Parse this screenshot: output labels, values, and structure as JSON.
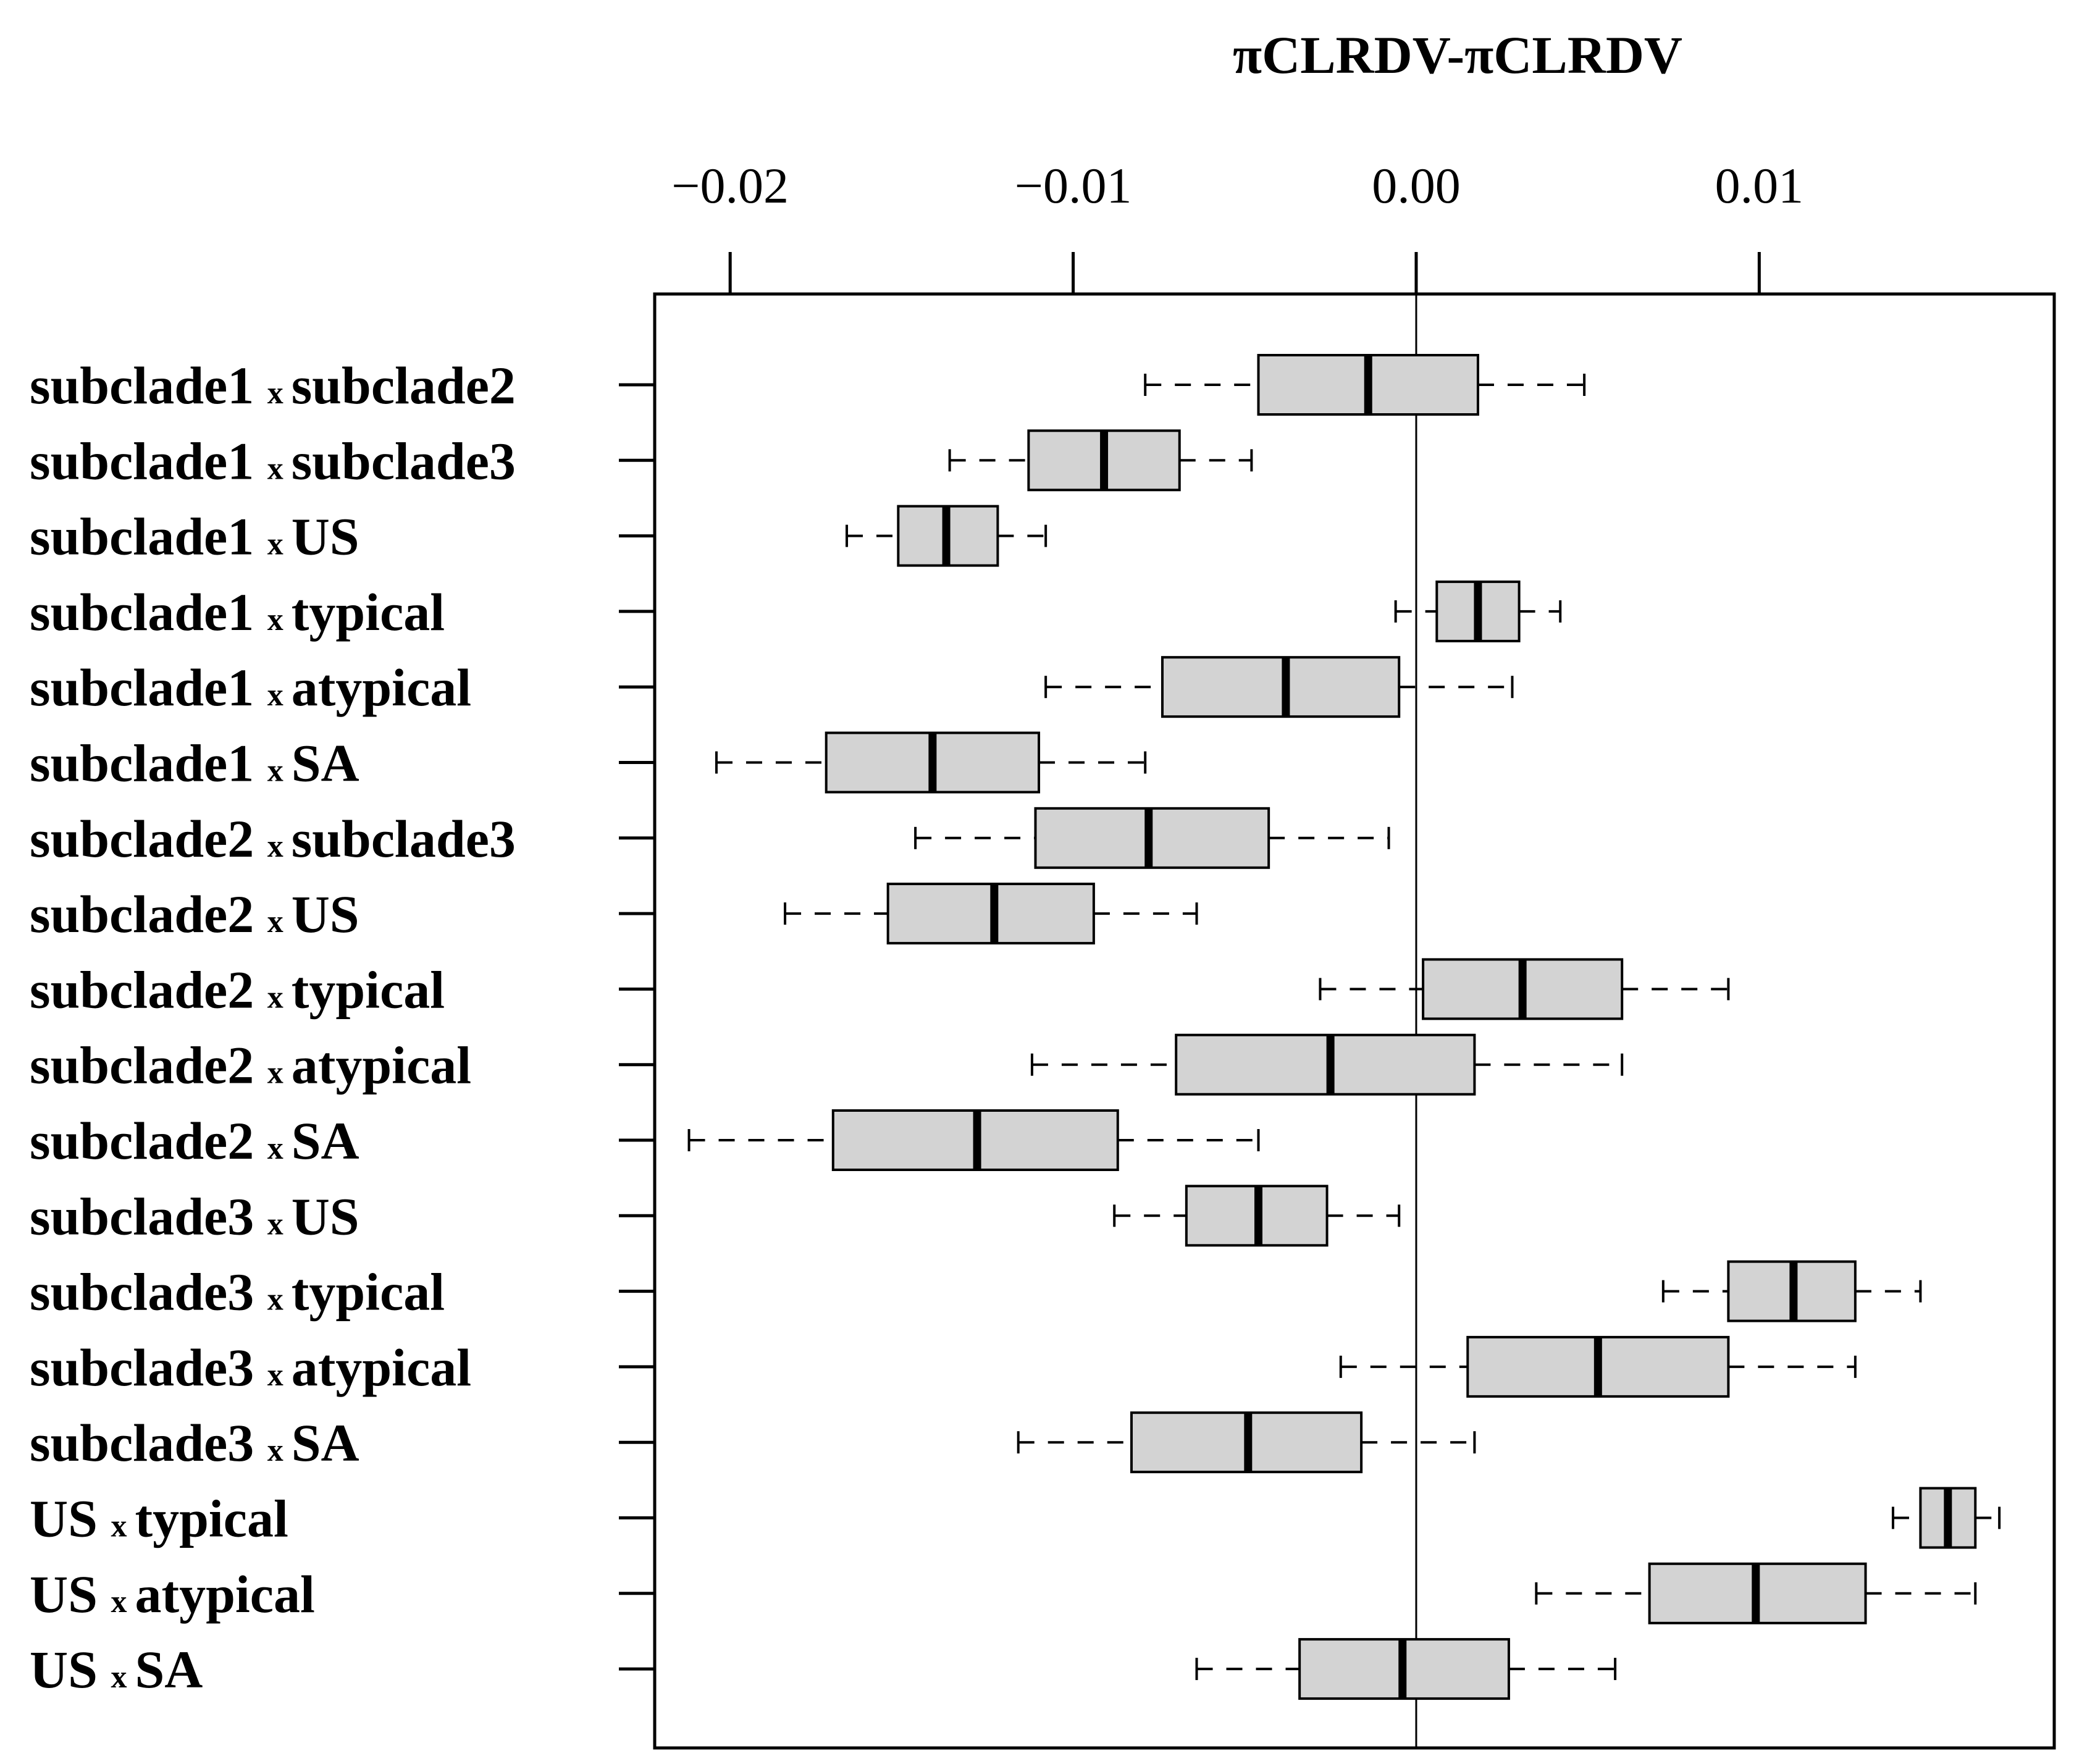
{
  "chart_data": {
    "type": "boxplot",
    "orientation": "horizontal",
    "title": "πCLRDV-πCLRDV",
    "xlabel": "",
    "ylabel": "",
    "xlim": [
      -0.0222,
      0.0186
    ],
    "ticks": [
      {
        "value": -0.02,
        "label": "−0.02"
      },
      {
        "value": -0.01,
        "label": "−0.01"
      },
      {
        "value": 0.0,
        "label": "0.00"
      },
      {
        "value": 0.01,
        "label": "0.01"
      }
    ],
    "reference_line": 0.0,
    "box_color": "#d3d3d3",
    "separator": "x",
    "categories": [
      {
        "left": "subclade1",
        "right": "subclade2",
        "whisker_low": -0.0079,
        "q1": -0.0046,
        "median": -0.0014,
        "q3": 0.0018,
        "whisker_high": 0.0049
      },
      {
        "left": "subclade1",
        "right": "subclade3",
        "whisker_low": -0.0136,
        "q1": -0.0113,
        "median": -0.0091,
        "q3": -0.0069,
        "whisker_high": -0.0048
      },
      {
        "left": "subclade1",
        "right": "US",
        "whisker_low": -0.0166,
        "q1": -0.0151,
        "median": -0.0137,
        "q3": -0.0122,
        "whisker_high": -0.0108
      },
      {
        "left": "subclade1",
        "right": "typical",
        "whisker_low": -0.0006,
        "q1": 0.0006,
        "median": 0.0018,
        "q3": 0.003,
        "whisker_high": 0.0042
      },
      {
        "left": "subclade1",
        "right": "atypical",
        "whisker_low": -0.0108,
        "q1": -0.0074,
        "median": -0.0038,
        "q3": -0.0005,
        "whisker_high": 0.0028
      },
      {
        "left": "subclade1",
        "right": "SA",
        "whisker_low": -0.0204,
        "q1": -0.0172,
        "median": -0.0141,
        "q3": -0.011,
        "whisker_high": -0.0079
      },
      {
        "left": "subclade2",
        "right": "subclade3",
        "whisker_low": -0.0146,
        "q1": -0.0111,
        "median": -0.0078,
        "q3": -0.0043,
        "whisker_high": -0.0008
      },
      {
        "left": "subclade2",
        "right": "US",
        "whisker_low": -0.0184,
        "q1": -0.0154,
        "median": -0.0123,
        "q3": -0.0094,
        "whisker_high": -0.0064
      },
      {
        "left": "subclade2",
        "right": "typical",
        "whisker_low": -0.0028,
        "q1": 0.0002,
        "median": 0.0031,
        "q3": 0.006,
        "whisker_high": 0.0091
      },
      {
        "left": "subclade2",
        "right": "atypical",
        "whisker_low": -0.0112,
        "q1": -0.007,
        "median": -0.0025,
        "q3": 0.0017,
        "whisker_high": 0.006
      },
      {
        "left": "subclade2",
        "right": "SA",
        "whisker_low": -0.0212,
        "q1": -0.017,
        "median": -0.0128,
        "q3": -0.0087,
        "whisker_high": -0.0046
      },
      {
        "left": "subclade3",
        "right": "US",
        "whisker_low": -0.0088,
        "q1": -0.0067,
        "median": -0.0046,
        "q3": -0.0026,
        "whisker_high": -0.0005
      },
      {
        "left": "subclade3",
        "right": "typical",
        "whisker_low": 0.0072,
        "q1": 0.0091,
        "median": 0.011,
        "q3": 0.0128,
        "whisker_high": 0.0147
      },
      {
        "left": "subclade3",
        "right": "atypical",
        "whisker_low": -0.0022,
        "q1": 0.0015,
        "median": 0.0053,
        "q3": 0.0091,
        "whisker_high": 0.0128
      },
      {
        "left": "subclade3",
        "right": "SA",
        "whisker_low": -0.0116,
        "q1": -0.0083,
        "median": -0.0049,
        "q3": -0.0016,
        "whisker_high": 0.0017
      },
      {
        "left": "US",
        "right": "typical",
        "whisker_low": 0.0139,
        "q1": 0.0147,
        "median": 0.0155,
        "q3": 0.0163,
        "whisker_high": 0.017
      },
      {
        "left": "US",
        "right": "atypical",
        "whisker_low": 0.0035,
        "q1": 0.0068,
        "median": 0.0099,
        "q3": 0.0131,
        "whisker_high": 0.0163
      },
      {
        "left": "US",
        "right": "SA",
        "whisker_low": -0.0064,
        "q1": -0.0034,
        "median": -0.0004,
        "q3": 0.0027,
        "whisker_high": 0.0058
      }
    ]
  }
}
